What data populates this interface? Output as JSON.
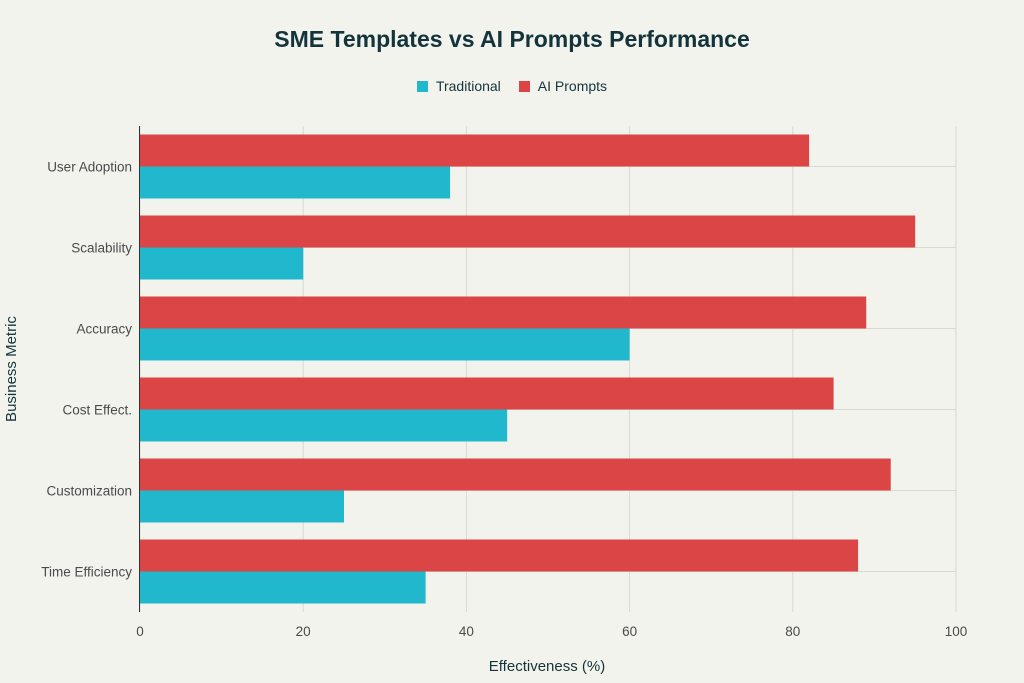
{
  "chart_data": {
    "type": "bar",
    "orientation": "horizontal",
    "title": "SME Templates vs AI Prompts Performance",
    "xlabel": "Effectiveness (%)",
    "ylabel": "Business Metric",
    "xlim": [
      0,
      100
    ],
    "xticks": [
      0,
      20,
      40,
      60,
      80,
      100
    ],
    "categories": [
      "User Adoption",
      "Scalability",
      "Accuracy",
      "Cost Effect.",
      "Customization",
      "Time Efficiency"
    ],
    "series": [
      {
        "name": "Traditional",
        "color": "#21b8cd",
        "values": [
          38,
          20,
          60,
          45,
          25,
          35
        ]
      },
      {
        "name": "AI Prompts",
        "color": "#db4545",
        "values": [
          82,
          95,
          89,
          85,
          92,
          88
        ]
      }
    ],
    "grid": true,
    "legend_position": "top-center"
  }
}
